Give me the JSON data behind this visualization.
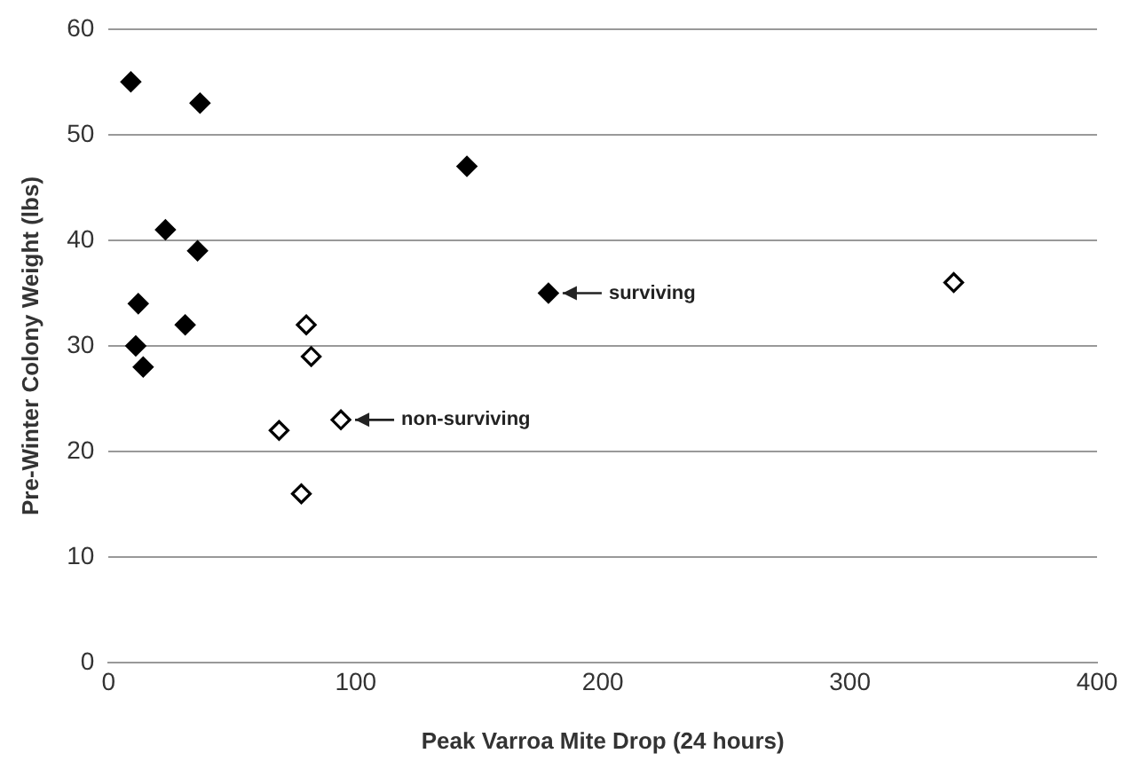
{
  "chart_data": {
    "type": "scatter",
    "xlabel": "Peak Varroa Mite Drop (24 hours)",
    "ylabel": "Pre-Winter Colony Weight (lbs)",
    "xlim": [
      0,
      400
    ],
    "xticks": [
      0,
      100,
      200,
      300,
      400
    ],
    "ylim": [
      0,
      60
    ],
    "yticks": [
      0,
      10,
      20,
      30,
      40,
      50,
      60
    ],
    "grid": "y",
    "legend": false,
    "marker": "diamond",
    "series": [
      {
        "color": "#000000",
        "x": [
          9,
          37,
          145,
          23,
          36,
          12,
          178,
          31,
          11,
          14
        ],
        "values": [
          55,
          53,
          47,
          41,
          39,
          34,
          35,
          32,
          30,
          28
        ]
      },
      {
        "color": "#000000",
        "x": [
          80,
          82,
          69,
          94,
          78,
          342
        ],
        "values": [
          32,
          29,
          22,
          23,
          16,
          36
        ]
      }
    ],
    "annotations": [
      {
        "text": "surviving",
        "x": 178,
        "y": 35
      },
      {
        "text": "non-surviving",
        "x": 94,
        "y": 23
      }
    ]
  }
}
